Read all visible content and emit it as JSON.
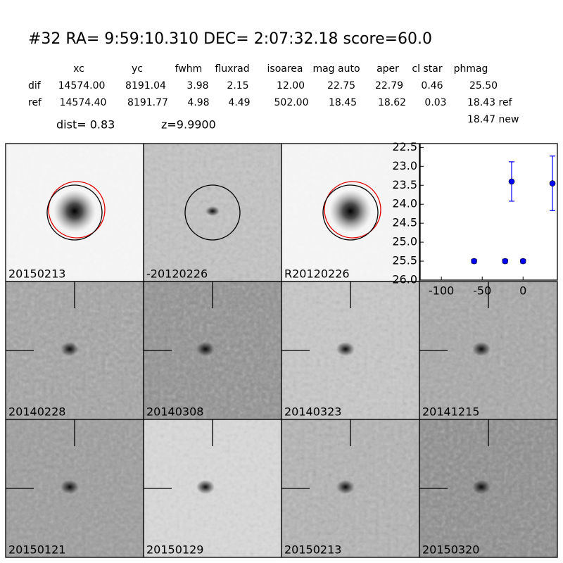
{
  "header": {
    "title": "#32   RA= 9:59:10.310 DEC= 2:07:32.18      score=60.0",
    "dist": "dist=  0.83",
    "z": "z=9.9900"
  },
  "table": {
    "columns": [
      "xc",
      "yc",
      "fwhm",
      "fluxrad",
      "isoarea",
      "mag auto",
      "aper",
      "cl star",
      "phmag"
    ],
    "rows": [
      [
        "dif",
        "14574.00",
        "8191.04",
        "3.98",
        "2.15",
        "12.00",
        "22.75",
        "22.79",
        "0.46",
        "25.50"
      ],
      [
        "ref",
        "14574.40",
        "8191.77",
        "4.98",
        "4.49",
        "502.00",
        "18.45",
        "18.62",
        "0.03",
        "18.43 ref"
      ]
    ],
    "extra": "18.47 new"
  },
  "panels": [
    {
      "label": "20150213"
    },
    {
      "label": "-20120226"
    },
    {
      "label": "R20120226"
    },
    {
      "label": "20140228"
    },
    {
      "label": "20140308"
    },
    {
      "label": "20140323"
    },
    {
      "label": "20141215"
    },
    {
      "label": "20150121"
    },
    {
      "label": "20150129"
    },
    {
      "label": "20150213",
      "color": "#ff0000"
    },
    {
      "label": "20150320"
    }
  ],
  "chart_data": {
    "type": "scatter",
    "x": [
      -60,
      -22,
      -14,
      0,
      36
    ],
    "values": [
      25.5,
      25.5,
      23.4,
      25.5,
      23.45
    ],
    "errors": [
      0.05,
      0.05,
      0.52,
      0.05,
      0.72
    ],
    "color": "#0000ff",
    "xlim": [
      -126,
      42
    ],
    "ylim": [
      22.4,
      26.0
    ],
    "y_inverted": true,
    "xticks": [
      -100,
      -50,
      0
    ],
    "yticks": [
      22.5,
      {
        "value": 23,
        "label": "23.0"
      },
      23.5,
      {
        "value": 24,
        "label": "24.0"
      },
      24.5,
      {
        "value": 25,
        "label": "25.0"
      },
      25.5,
      {
        "value": 26,
        "label": "26.0"
      }
    ]
  }
}
